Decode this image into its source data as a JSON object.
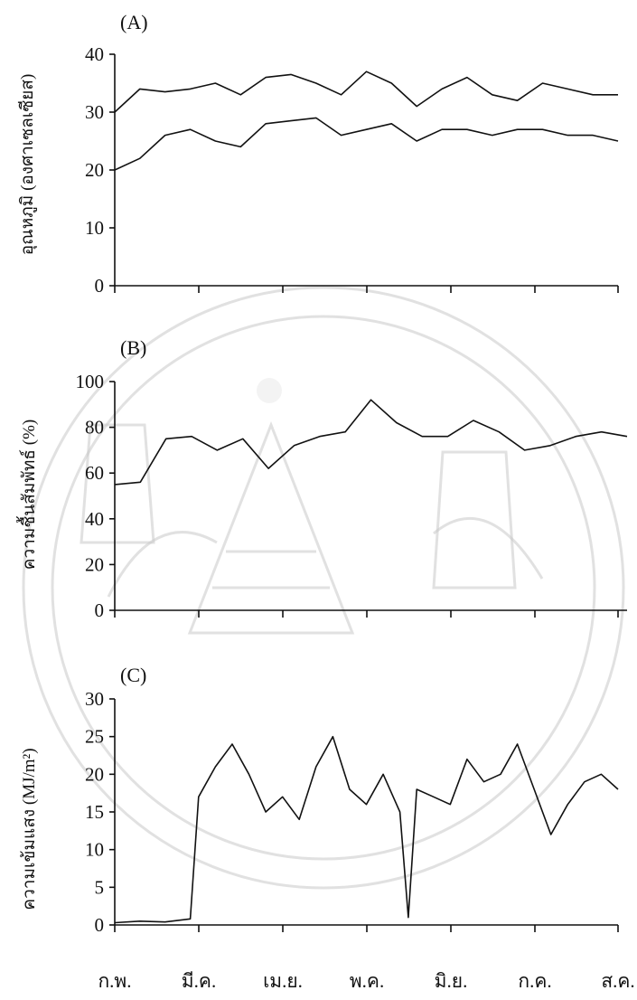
{
  "months": [
    "ก.พ.",
    "มี.ค.",
    "เม.ย.",
    "พ.ค.",
    "มิ.ย.",
    "ก.ค.",
    "ส.ค."
  ],
  "colors": {
    "line": "#111111",
    "watermark": "#c9c9c9"
  },
  "watermark": {
    "type": "university-seal",
    "visible": true
  },
  "chart_data": [
    {
      "type": "line",
      "panel": "(A)",
      "ylabel": "อุณหภูมิ (องศาเซลเซียส)",
      "ylim": [
        0,
        40
      ],
      "yticks": [
        0,
        10,
        20,
        30,
        40
      ],
      "x": [
        0,
        0.3,
        0.6,
        0.9,
        1.2,
        1.5,
        1.8,
        2.1,
        2.4,
        2.7,
        3.0,
        3.3,
        3.6,
        3.9,
        4.2,
        4.5,
        4.8,
        5.1,
        5.4,
        5.7,
        6.0
      ],
      "series": [
        {
          "values": [
            30,
            34,
            33.5,
            34,
            35,
            33,
            36,
            36.5,
            35,
            33,
            37,
            35,
            31,
            34,
            36,
            33,
            32,
            35,
            34,
            33,
            33
          ]
        },
        {
          "values": [
            20,
            22,
            26,
            27,
            25,
            24,
            28,
            28.5,
            29,
            26,
            27,
            28,
            25,
            27,
            27,
            26,
            27,
            27,
            26,
            26,
            25
          ]
        }
      ]
    },
    {
      "type": "line",
      "panel": "(B)",
      "ylabel": "ความชื้นสัมพัทธ์ (%)",
      "ylim": [
        0,
        100
      ],
      "yticks": [
        0,
        20,
        40,
        60,
        80,
        100
      ],
      "x": [
        0,
        0.3,
        0.6,
        0.9,
        1.2,
        1.5,
        1.8,
        2.1,
        2.4,
        2.7,
        3.0,
        3.3,
        3.6,
        3.9,
        4.2,
        4.5,
        4.8,
        5.1,
        5.4,
        5.7,
        6.0
      ],
      "series": [
        {
          "values": [
            55,
            56,
            75,
            76,
            70,
            75,
            62,
            72,
            76,
            78,
            92,
            82,
            76,
            76,
            83,
            78,
            70,
            72,
            76,
            78,
            76
          ]
        }
      ]
    },
    {
      "type": "line",
      "panel": "(C)",
      "ylabel": "ความเข้มแสง (MJ/m²)",
      "ylim": [
        0,
        30
      ],
      "yticks": [
        0,
        5,
        10,
        15,
        20,
        25,
        30
      ],
      "x": [
        0,
        0.3,
        0.6,
        0.9,
        1.0,
        1.2,
        1.4,
        1.6,
        1.8,
        2.0,
        2.2,
        2.4,
        2.6,
        2.8,
        3.0,
        3.2,
        3.4,
        3.5,
        3.6,
        3.8,
        4.0,
        4.2,
        4.4,
        4.6,
        4.8,
        5.0,
        5.2,
        5.4,
        5.6,
        5.8,
        6.0
      ],
      "series": [
        {
          "values": [
            0.3,
            0.5,
            0.4,
            0.8,
            17,
            21,
            24,
            20,
            15,
            17,
            14,
            21,
            25,
            18,
            16,
            20,
            15,
            1,
            18,
            17,
            16,
            22,
            19,
            20,
            24,
            18,
            12,
            16,
            19,
            20,
            18
          ]
        }
      ]
    }
  ]
}
